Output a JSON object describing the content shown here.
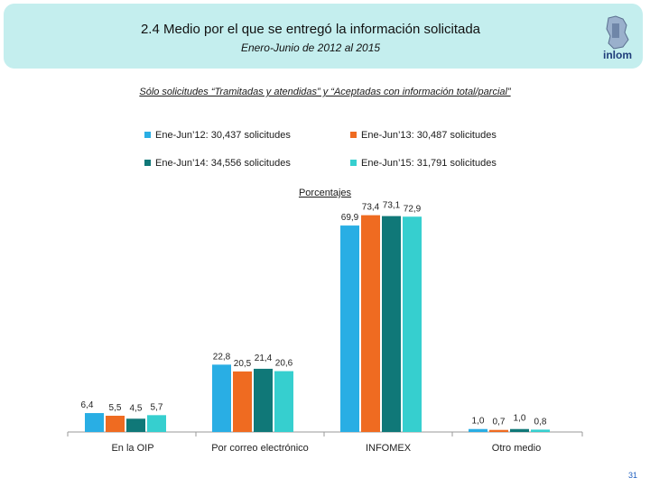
{
  "header": {
    "title": "2.4 Medio por el que se entregó la información solicitada",
    "subtitle": "Enero-Junio de 2012 al 2015",
    "logo_text": "inlom"
  },
  "note": "Sólo solicitudes “Tramitadas y atendidas” y “Aceptadas con información total/parcial”",
  "page_number": "31",
  "colors": {
    "banner": "#c4eeee",
    "series": [
      "#29aee4",
      "#ef6b21",
      "#107878",
      "#36cfcf"
    ]
  },
  "chart_data": {
    "type": "bar",
    "title": "Porcentajes",
    "categories": [
      "En la OIP",
      "Por correo electrónico",
      "INFOMEX",
      "Otro medio"
    ],
    "series": [
      {
        "name": "Ene-Jun’12: 30,437 solicitudes",
        "values": [
          6.4,
          22.8,
          69.9,
          1.0
        ],
        "labels": [
          "6,4",
          "22,8",
          "69,9",
          "1,0"
        ]
      },
      {
        "name": "Ene-Jun’13: 30,487 solicitudes",
        "values": [
          5.5,
          20.5,
          73.4,
          0.7
        ],
        "labels": [
          "5,5",
          "20,5",
          "73,4",
          "0,7"
        ]
      },
      {
        "name": "Ene-Jun’14: 34,556 solicitudes",
        "values": [
          4.5,
          21.4,
          73.1,
          1.0
        ],
        "labels": [
          "4,5",
          "21,4",
          "73,1",
          "1,0"
        ]
      },
      {
        "name": "Ene-Jun’15: 31,791 solicitudes",
        "values": [
          5.7,
          20.6,
          72.9,
          0.8
        ],
        "labels": [
          "5,7",
          "20,6",
          "72,9",
          "0,8"
        ]
      }
    ],
    "ylim": [
      0,
      80
    ],
    "legend_position": "top",
    "grid": false
  }
}
